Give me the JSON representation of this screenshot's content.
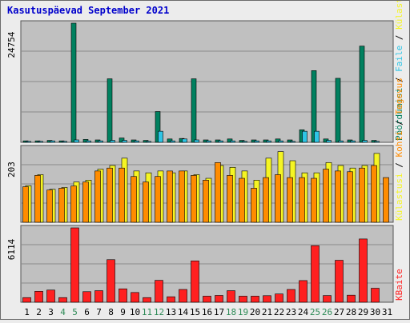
{
  "title": "Kasutuspäevad September 2021",
  "colors": {
    "background": "#ececec",
    "plot_bg": "#c0c0c0",
    "title": "#0000cc",
    "weekend_label": "#2e8b57",
    "pageviews": "#00805f",
    "files": "#2ec5e6",
    "hits": "#f5f524",
    "visits": "#ff8c00",
    "kbytes": "#ff2020"
  },
  "chart_data": [
    {
      "type": "bar",
      "panel": "top",
      "ytick_label": "24754",
      "ylim": [
        0,
        24754
      ],
      "categories": [
        "1",
        "2",
        "3",
        "4",
        "5",
        "6",
        "7",
        "8",
        "9",
        "10",
        "11",
        "12",
        "13",
        "14",
        "15",
        "16",
        "17",
        "18",
        "19",
        "20",
        "21",
        "22",
        "23",
        "24",
        "25",
        "26",
        "27",
        "28",
        "29",
        "30",
        "31"
      ],
      "weekend_days": [
        "4",
        "5",
        "11",
        "12",
        "18",
        "19",
        "25",
        "26"
      ],
      "legend": [
        "Pöördumisi",
        "Faile",
        "Külastusi"
      ],
      "series": [
        {
          "name": "Pöördumisi",
          "color": "#00805f",
          "values": [
            300,
            300,
            400,
            300,
            24754,
            600,
            500,
            13200,
            900,
            500,
            400,
            6400,
            700,
            800,
            13200,
            500,
            500,
            700,
            400,
            500,
            500,
            700,
            500,
            2600,
            14900,
            700,
            13300,
            500,
            20000,
            400,
            0
          ]
        },
        {
          "name": "Faile",
          "color": "#2ec5e6",
          "values": [
            200,
            200,
            300,
            200,
            500,
            300,
            300,
            400,
            400,
            300,
            200,
            2300,
            300,
            700,
            500,
            300,
            300,
            300,
            200,
            300,
            300,
            300,
            200,
            2300,
            2300,
            400,
            300,
            300,
            400,
            200,
            0
          ]
        }
      ]
    },
    {
      "type": "bar",
      "panel": "middle",
      "ytick_label": "203",
      "ylim": [
        0,
        203
      ],
      "categories": [
        "1",
        "2",
        "3",
        "4",
        "5",
        "6",
        "7",
        "8",
        "9",
        "10",
        "11",
        "12",
        "13",
        "14",
        "15",
        "16",
        "17",
        "18",
        "19",
        "20",
        "21",
        "22",
        "23",
        "24",
        "25",
        "26",
        "27",
        "28",
        "29",
        "30",
        "31"
      ],
      "legend": [
        "Külastusi",
        "Kohti",
        "Tegevus"
      ],
      "series": [
        {
          "name": "Külastusi",
          "color": "#f5f524",
          "values": [
            100,
            130,
            90,
            95,
            110,
            115,
            145,
            155,
            175,
            140,
            135,
            140,
            135,
            140,
            130,
            120,
            155,
            150,
            140,
            115,
            175,
            193,
            168,
            135,
            135,
            163,
            155,
            148,
            155,
            188,
            0
          ]
        },
        {
          "name": "Tegevus",
          "color": "#ff8c00",
          "values": [
            97,
            128,
            88,
            93,
            99,
            110,
            140,
            148,
            148,
            125,
            110,
            125,
            140,
            140,
            128,
            115,
            163,
            128,
            120,
            93,
            122,
            130,
            122,
            122,
            120,
            145,
            140,
            138,
            148,
            155,
            122
          ]
        }
      ]
    },
    {
      "type": "bar",
      "panel": "bottom",
      "ytick_label": "6114",
      "ylim": [
        0,
        6114
      ],
      "categories": [
        "1",
        "2",
        "3",
        "4",
        "5",
        "6",
        "7",
        "8",
        "9",
        "10",
        "11",
        "12",
        "13",
        "14",
        "15",
        "16",
        "17",
        "18",
        "19",
        "20",
        "21",
        "22",
        "23",
        "24",
        "25",
        "26",
        "27",
        "28",
        "29",
        "30",
        "31"
      ],
      "legend": [
        "KBaite"
      ],
      "series": [
        {
          "name": "KBaite",
          "color": "#ff2020",
          "values": [
            380,
            900,
            1000,
            380,
            6114,
            870,
            950,
            3500,
            1100,
            800,
            380,
            1800,
            450,
            1050,
            3400,
            500,
            560,
            950,
            500,
            500,
            540,
            680,
            1050,
            1780,
            4650,
            550,
            3450,
            580,
            5200,
            1150,
            0
          ]
        }
      ]
    }
  ]
}
